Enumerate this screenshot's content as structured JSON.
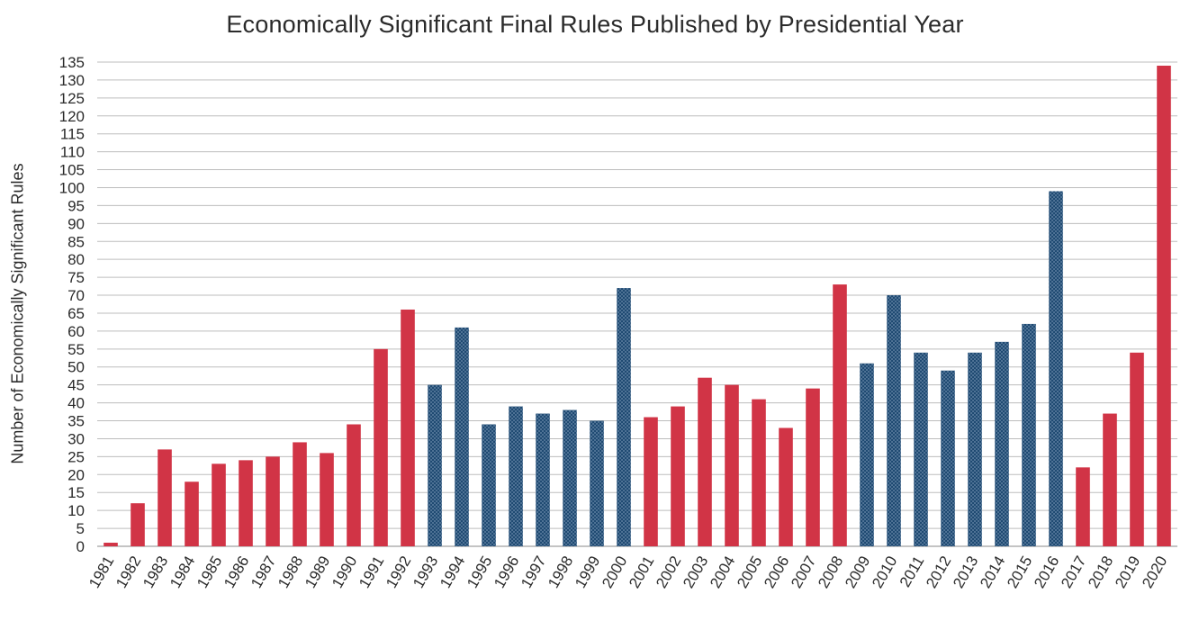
{
  "chart_data": {
    "type": "bar",
    "title": "Economically Significant Final Rules Published by Presidential Year",
    "xlabel": "",
    "ylabel": "Number of Economically Significant Rules",
    "ylim": [
      0,
      135
    ],
    "ytick_step": 5,
    "grid": true,
    "legend": "none",
    "categories": [
      "1981",
      "1982",
      "1983",
      "1984",
      "1985",
      "1986",
      "1987",
      "1988",
      "1989",
      "1990",
      "1991",
      "1992",
      "1993",
      "1994",
      "1995",
      "1996",
      "1997",
      "1998",
      "1999",
      "2000",
      "2001",
      "2002",
      "2003",
      "2004",
      "2005",
      "2006",
      "2007",
      "2008",
      "2009",
      "2010",
      "2011",
      "2012",
      "2013",
      "2014",
      "2015",
      "2016",
      "2017",
      "2018",
      "2019",
      "2020"
    ],
    "values": [
      1,
      12,
      27,
      18,
      23,
      24,
      25,
      29,
      26,
      34,
      55,
      66,
      45,
      61,
      34,
      39,
      37,
      38,
      35,
      72,
      36,
      39,
      47,
      45,
      41,
      33,
      44,
      73,
      51,
      70,
      54,
      49,
      54,
      57,
      62,
      99,
      22,
      37,
      54,
      134
    ],
    "bar_party": [
      "R",
      "R",
      "R",
      "R",
      "R",
      "R",
      "R",
      "R",
      "R",
      "R",
      "R",
      "R",
      "D",
      "D",
      "D",
      "D",
      "D",
      "D",
      "D",
      "D",
      "R",
      "R",
      "R",
      "R",
      "R",
      "R",
      "R",
      "R",
      "D",
      "D",
      "D",
      "D",
      "D",
      "D",
      "D",
      "D",
      "R",
      "R",
      "R",
      "R"
    ],
    "colors": {
      "R": "#d13446",
      "D": "#1f4a72",
      "grid": "#bdbdbd",
      "axis": "#888888"
    }
  }
}
